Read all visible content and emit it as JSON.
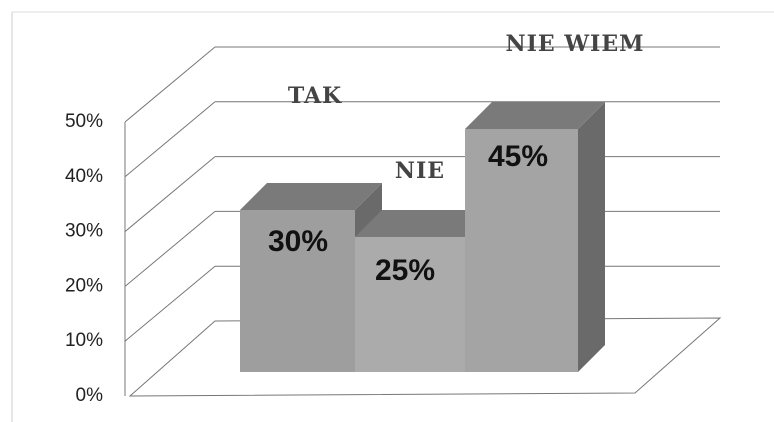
{
  "chart_data": {
    "type": "bar3d",
    "categories": [
      "TAK",
      "NIE",
      "NIE WIEM"
    ],
    "values": [
      30,
      25,
      45
    ],
    "value_labels": [
      "30%",
      "25%",
      "45%"
    ],
    "ylim": [
      0,
      50
    ],
    "yticks": [
      {
        "value": 0,
        "label": "0%"
      },
      {
        "value": 10,
        "label": "10%"
      },
      {
        "value": 20,
        "label": "20%"
      },
      {
        "value": 30,
        "label": "30%"
      },
      {
        "value": 40,
        "label": "40%"
      },
      {
        "value": 50,
        "label": "50%"
      }
    ],
    "grid": true,
    "colors": [
      "#9e9e9e",
      "#ababab",
      "#a4a4a4"
    ]
  }
}
